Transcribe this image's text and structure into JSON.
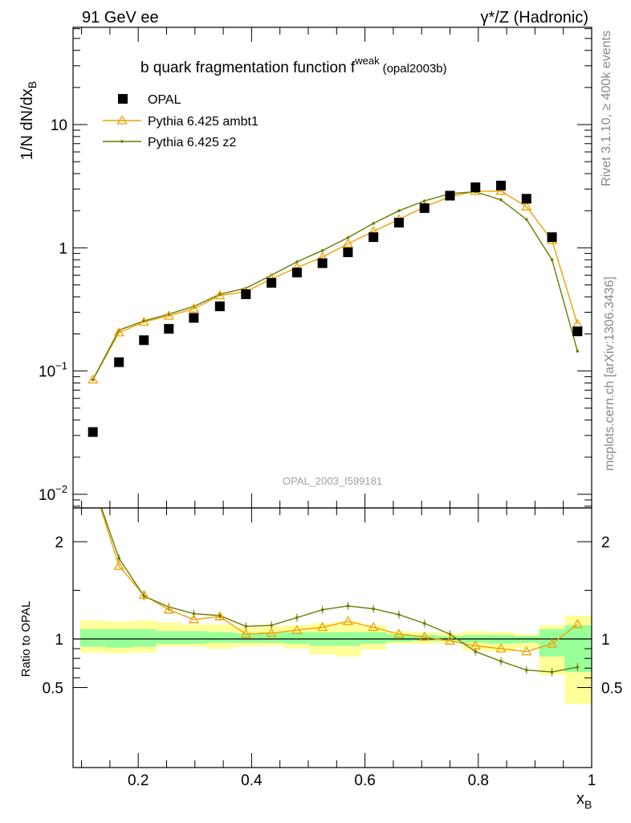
{
  "header": {
    "left": "91 GeV ee",
    "right": "γ*/Z (Hadronic)"
  },
  "side": {
    "rivet": "Rivet 3.1.10, ≥ 400k events",
    "source": "mcplots.cern.ch [arXiv:1306.3436]"
  },
  "chart_data": {
    "type": "scatter",
    "title": "b quark fragmentation function f",
    "title_superscript": "weak",
    "title_suffix": "(opal2003b)",
    "analysis_id": "OPAL_2003_I599181",
    "xlabel": "x",
    "xlabel_sub": "B",
    "ylabel": "1/N dN/dx",
    "ylabel_sub": "B",
    "ratio_ylabel": "Ratio to OPAL",
    "xlim": [
      0.085,
      1.0
    ],
    "ylim": [
      0.007,
      60
    ],
    "yscale": "log",
    "ratio_ylim": [
      0.4,
      2.3
    ],
    "x_ticks": [
      "0.2",
      "0.4",
      "0.6",
      "0.8",
      "1"
    ],
    "y_ticks": [
      "10^-2",
      "10^-1",
      "1",
      "10"
    ],
    "ratio_ticks": [
      "0.5",
      "1",
      "2"
    ],
    "legend_position": "top-left",
    "colors": {
      "data": "#000000",
      "ambt1": "#f0a000",
      "z2": "#6a7c00",
      "band_inner": "#99ff99",
      "band_outer": "#ffff99"
    },
    "x": [
      0.12,
      0.166,
      0.21,
      0.254,
      0.298,
      0.344,
      0.39,
      0.435,
      0.48,
      0.525,
      0.57,
      0.615,
      0.66,
      0.705,
      0.75,
      0.795,
      0.84,
      0.885,
      0.93,
      0.975
    ],
    "bin_edges": [
      0.0975,
      0.143,
      0.188,
      0.232,
      0.276,
      0.321,
      0.367,
      0.4125,
      0.4575,
      0.5025,
      0.5475,
      0.5925,
      0.6375,
      0.6825,
      0.7275,
      0.7725,
      0.8175,
      0.8625,
      0.9075,
      0.9525,
      1.0
    ],
    "series": [
      {
        "name": "OPAL",
        "values": [
          0.032,
          0.118,
          0.178,
          0.22,
          0.27,
          0.335,
          0.42,
          0.52,
          0.63,
          0.75,
          0.92,
          1.22,
          1.6,
          2.1,
          2.65,
          3.1,
          3.2,
          2.5,
          1.22,
          0.21
        ]
      },
      {
        "name": "Pythia 6.425 ambt1",
        "values": [
          0.085,
          0.205,
          0.25,
          0.28,
          0.32,
          0.41,
          0.44,
          0.56,
          0.69,
          0.84,
          1.08,
          1.36,
          1.7,
          2.15,
          2.6,
          2.88,
          2.88,
          2.16,
          1.15,
          0.24
        ]
      },
      {
        "name": "Pythia 6.425 z2",
        "values": [
          0.085,
          0.215,
          0.255,
          0.29,
          0.335,
          0.42,
          0.47,
          0.6,
          0.77,
          0.95,
          1.21,
          1.58,
          2.0,
          2.4,
          2.75,
          2.85,
          2.45,
          1.7,
          0.8,
          0.145
        ]
      }
    ],
    "ratio": {
      "ambt1": [
        2.6,
        1.75,
        1.45,
        1.3,
        1.2,
        1.23,
        1.05,
        1.06,
        1.09,
        1.12,
        1.18,
        1.12,
        1.05,
        1.02,
        0.98,
        0.93,
        0.9,
        0.87,
        0.95,
        1.15
      ],
      "z2": [
        2.6,
        1.83,
        1.44,
        1.33,
        1.26,
        1.24,
        1.13,
        1.14,
        1.22,
        1.3,
        1.34,
        1.31,
        1.25,
        1.16,
        1.05,
        0.87,
        0.77,
        0.68,
        0.66,
        0.71
      ],
      "band_inner": [
        [
          0.92,
          1.1
        ],
        [
          0.91,
          1.1
        ],
        [
          0.92,
          1.1
        ],
        [
          0.95,
          1.08
        ],
        [
          0.95,
          1.08
        ],
        [
          0.96,
          1.07
        ],
        [
          0.96,
          1.06
        ],
        [
          0.96,
          1.07
        ],
        [
          0.95,
          1.07
        ],
        [
          0.93,
          1.07
        ],
        [
          0.93,
          1.07
        ],
        [
          0.95,
          1.07
        ],
        [
          0.97,
          1.05
        ],
        [
          0.98,
          1.04
        ],
        [
          0.98,
          1.03
        ],
        [
          0.96,
          1.04
        ],
        [
          0.95,
          1.04
        ],
        [
          0.96,
          1.03
        ],
        [
          0.82,
          1.1
        ],
        [
          0.66,
          1.14
        ]
      ],
      "band_outer": [
        [
          0.86,
          1.19
        ],
        [
          0.85,
          1.18
        ],
        [
          0.86,
          1.19
        ],
        [
          0.92,
          1.17
        ],
        [
          0.92,
          1.15
        ],
        [
          0.9,
          1.15
        ],
        [
          0.92,
          1.12
        ],
        [
          0.93,
          1.13
        ],
        [
          0.9,
          1.14
        ],
        [
          0.84,
          1.16
        ],
        [
          0.82,
          1.18
        ],
        [
          0.89,
          1.14
        ],
        [
          0.95,
          1.08
        ],
        [
          0.95,
          1.07
        ],
        [
          0.96,
          1.06
        ],
        [
          0.88,
          1.08
        ],
        [
          0.87,
          1.07
        ],
        [
          0.9,
          1.05
        ],
        [
          0.63,
          1.14
        ],
        [
          0.33,
          1.24
        ]
      ]
    }
  }
}
